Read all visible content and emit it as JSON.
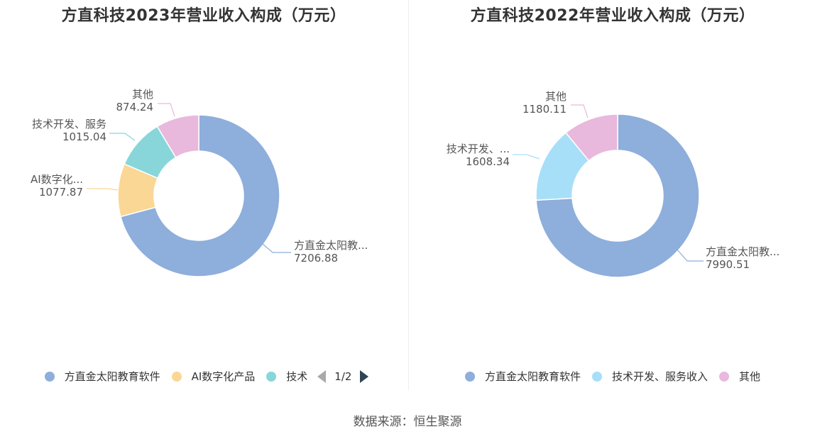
{
  "source": "数据来源：恒生聚源",
  "chart_data": [
    {
      "type": "pie",
      "variant": "donut",
      "title": "方直科技2023年营业收入构成（万元）",
      "slices": [
        {
          "name": "方直金太阳教育软件",
          "label": "方直金太阳教...",
          "value": 7206.88,
          "value_text": "7206.88",
          "color": "#8eaedb"
        },
        {
          "name": "AI数字化产品",
          "label": "AI数字化...",
          "value": 1077.87,
          "value_text": "1077.87",
          "color": "#fad795"
        },
        {
          "name": "技术开发、服务收入",
          "label": "技术开发、服务",
          "value": 1015.04,
          "value_text": "1015.04",
          "color": "#88d6d9"
        },
        {
          "name": "其他",
          "label": "其他",
          "value": 874.24,
          "value_text": "874.24",
          "color": "#e8b9dc"
        }
      ],
      "legend": {
        "position": "bottom",
        "items": [
          "方直金太阳教育软件",
          "AI数字化产品",
          "技术"
        ],
        "colors": [
          "#8eaedb",
          "#fad795",
          "#88d6d9"
        ],
        "pager": "1/2"
      }
    },
    {
      "type": "pie",
      "variant": "donut",
      "title": "方直科技2022年营业收入构成（万元）",
      "slices": [
        {
          "name": "方直金太阳教育软件",
          "label": "方直金太阳教...",
          "value": 7990.51,
          "value_text": "7990.51",
          "color": "#8eaedb"
        },
        {
          "name": "技术开发、服务收入",
          "label": "技术开发、...",
          "value": 1608.34,
          "value_text": "1608.34",
          "color": "#a7dff8"
        },
        {
          "name": "其他",
          "label": "其他",
          "value": 1180.11,
          "value_text": "1180.11",
          "color": "#e8b9dc"
        }
      ],
      "legend": {
        "position": "bottom",
        "items": [
          "方直金太阳教育软件",
          "技术开发、服务收入",
          "其他"
        ],
        "colors": [
          "#8eaedb",
          "#a7dff8",
          "#e8b9dc"
        ]
      }
    }
  ]
}
